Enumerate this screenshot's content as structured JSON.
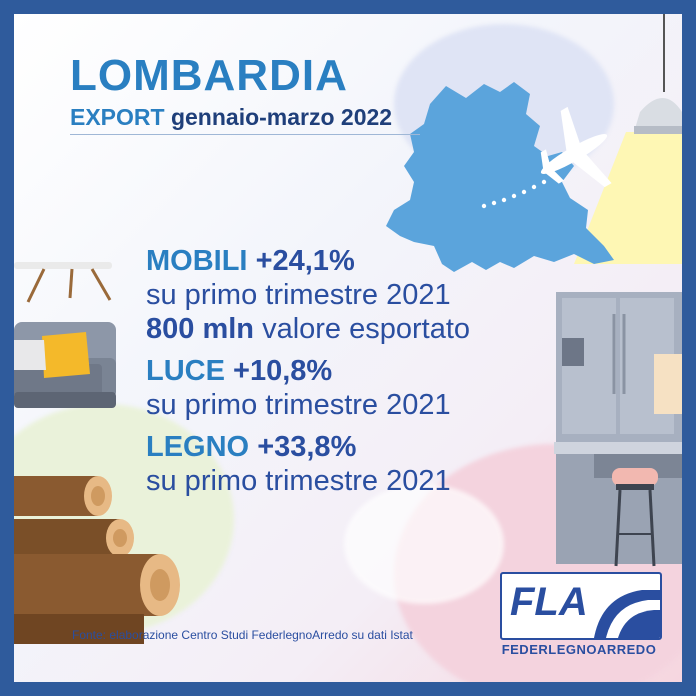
{
  "header": {
    "title": "LOMBARDIA",
    "subtitle_export": "EXPORT",
    "subtitle_period": "gennaio-marzo 2022"
  },
  "stats": {
    "mobili": {
      "label": "MOBILI",
      "value": "+24,1%",
      "compare": "su primo trimestre 2021",
      "export_value": "800 mln",
      "export_text": "valore esportato"
    },
    "luce": {
      "label": "LUCE",
      "value": "+10,8%",
      "compare": "su primo trimestre 2021"
    },
    "legno": {
      "label": "LEGNO",
      "value": "+33,8%",
      "compare": "su primo trimestre 2021"
    }
  },
  "footer": {
    "source": "Fonte: elaborazione Centro Studi FederlegnoArredo su dati Istat"
  },
  "logo": {
    "abbr": "FLA",
    "name": "FEDERLEGNOARREDO"
  },
  "icons": [
    "map-lombardia-icon",
    "airplane-icon",
    "pendant-lamp-icon",
    "table-icon",
    "sofa-icon",
    "logs-icon",
    "kitchen-icon",
    "bar-stool-icon"
  ],
  "colors": {
    "frame": "#2f5b9c",
    "title": "#2a7fc1",
    "text": "#2a4ea0",
    "map": "#5ba4dc"
  }
}
